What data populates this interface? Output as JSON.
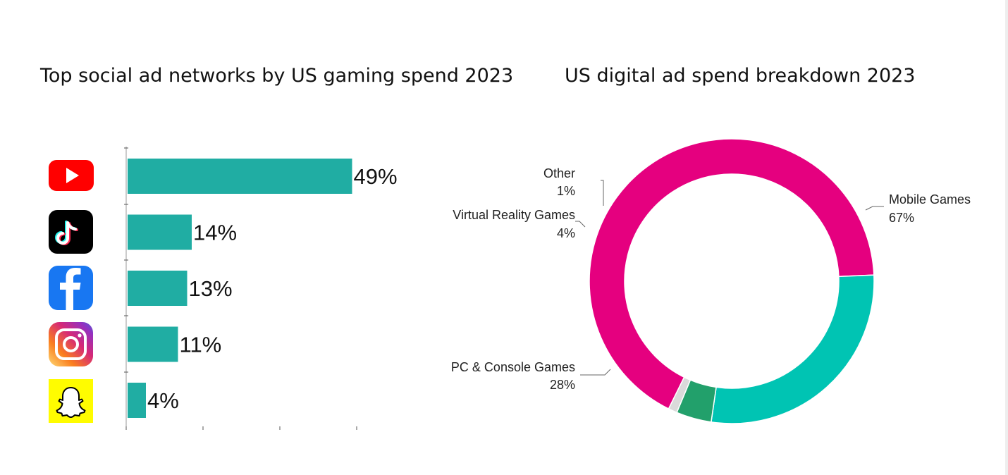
{
  "chart_data": [
    {
      "type": "bar",
      "orientation": "horizontal",
      "title": "Top social ad networks by US gaming spend 2023",
      "categories": [
        "YouTube",
        "TikTok",
        "Facebook",
        "Instagram",
        "Snapchat"
      ],
      "icons": [
        "youtube-icon",
        "tiktok-icon",
        "facebook-icon",
        "instagram-icon",
        "snapchat-icon"
      ],
      "values": [
        49,
        14,
        13,
        11,
        4
      ],
      "labels": [
        "49%",
        "14%",
        "13%",
        "11%",
        "4%"
      ],
      "xlim": [
        0,
        50
      ],
      "color": "#20ADA3"
    },
    {
      "type": "pie",
      "donut": true,
      "title": "US digital ad spend breakdown 2023",
      "slices": [
        {
          "name": "Mobile Games",
          "value": 67,
          "label": "67%",
          "color": "#E5007F"
        },
        {
          "name": "PC & Console Games",
          "value": 28,
          "label": "28%",
          "color": "#00C4B3"
        },
        {
          "name": "Virtual Reality Games",
          "value": 4,
          "label": "4%",
          "color": "#22A06B"
        },
        {
          "name": "Other",
          "value": 1,
          "label": "1%",
          "color": "#DADADA"
        }
      ]
    }
  ]
}
